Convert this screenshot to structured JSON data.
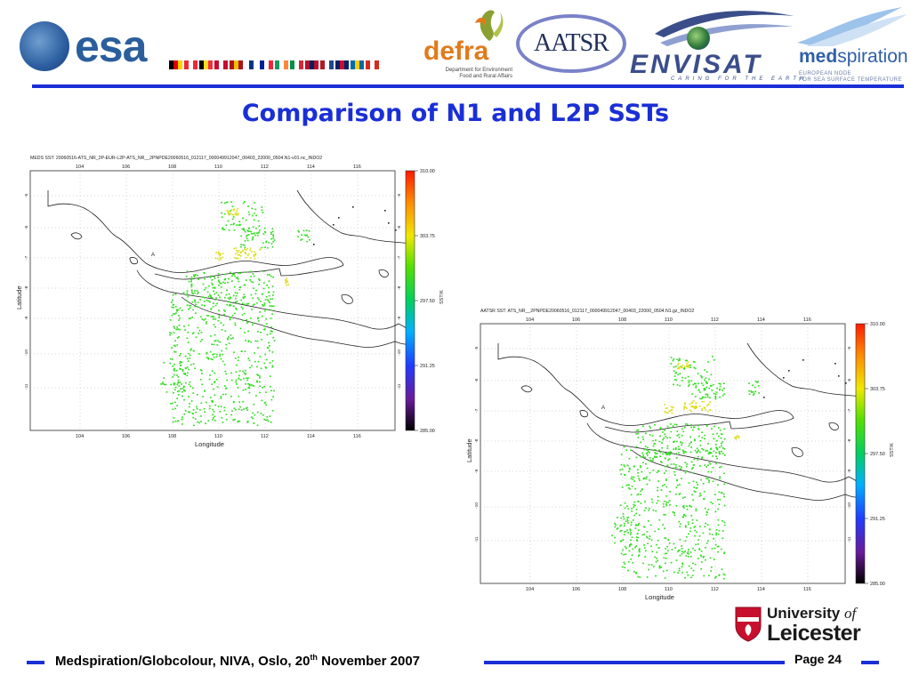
{
  "header": {
    "esa": {
      "text": "esa"
    },
    "flags": [
      [
        "#000000",
        "#dd0000",
        "#ffce00"
      ],
      [
        "#ed2939",
        "#ffffff",
        "#ed2939"
      ],
      [
        "#000000",
        "#fdda24",
        "#ef3340"
      ],
      [
        "#c60c30",
        "#ffffff",
        "#c60c30"
      ],
      [
        "#aa151b",
        "#f1bf00",
        "#aa151b"
      ],
      [
        "#ffffff",
        "#003580",
        "#ffffff"
      ],
      [
        "#002395",
        "#ffffff",
        "#ed2939"
      ],
      [
        "#169b62",
        "#ffffff",
        "#ff883e"
      ],
      [
        "#009246",
        "#ffffff",
        "#ce2b37"
      ],
      [
        "#ba0c2f",
        "#00205b",
        "#ba0c2f"
      ],
      [
        "#ae1c28",
        "#ffffff",
        "#21468b"
      ],
      [
        "#012169",
        "#c8102e",
        "#012169"
      ],
      [
        "#006aa7",
        "#fecc00",
        "#006aa7"
      ],
      [
        "#d52b1e",
        "#ffffff",
        "#d52b1e"
      ]
    ],
    "defra": {
      "word": "defra",
      "sub1": "Department for Environment",
      "sub2": "Food and Rural Affairs"
    },
    "aatsr": {
      "text": "AATSR"
    },
    "envisat": {
      "word": "ENVISAT",
      "tagline": "CARING FOR THE EARTH"
    },
    "medspiration": {
      "word_bold": "med",
      "word_rest": "spiration",
      "sub1": "EUROPEAN NODE",
      "sub2": "FOR SEA SURFACE TEMPERATURE"
    }
  },
  "title": "Comparison of N1 and L2P SSTs",
  "maps": [
    {
      "header": "MEDS SST: 20060516-ATS_NR_2P-EUR-L2P-ATS_NR__2PNPDE20060516_012117_000049912047_00403_22000_0504.N1-v01.nc_INDO2",
      "x_ticks": [
        "104",
        "106",
        "108",
        "110",
        "112",
        "114",
        "116"
      ],
      "y_ticks": [
        "-5",
        "-6",
        "-7",
        "-8",
        "-9",
        "-10",
        "-11"
      ],
      "xlabel": "Longitude",
      "ylabel": "Latitude",
      "marker": "A",
      "colorbar_ticks": [
        "310.00",
        "303.75",
        "297.50",
        "291.25",
        "285.00"
      ],
      "colorbar_label": "SST/K"
    },
    {
      "header": "AATSR SST: ATS_NR__2PNPDE20060516_012117_000049912047_00403_22000_0504.N1.gz_INDO2",
      "x_ticks": [
        "104",
        "106",
        "108",
        "110",
        "112",
        "114",
        "116"
      ],
      "y_ticks": [
        "-5",
        "-6",
        "-7",
        "-8",
        "-9",
        "-10",
        "-11"
      ],
      "xlabel": "Longitude",
      "ylabel": "Latitude",
      "marker": "A",
      "colorbar_ticks": [
        "310.00",
        "303.75",
        "297.50",
        "291.25",
        "285.00"
      ],
      "colorbar_label": "SST/K"
    }
  ],
  "leicester": {
    "line1": "University",
    "line1_of": "of",
    "line2": "Leicester"
  },
  "footer": {
    "text_pre": "Medspiration/Globcolour, NIVA, Oslo, 20",
    "text_sup": "th",
    "text_post": " November 2007",
    "page": "Page 24"
  },
  "colors": {
    "accent": "#1a2fd6",
    "sst_green": "#33dd22",
    "sst_yellow": "#dddd22"
  }
}
